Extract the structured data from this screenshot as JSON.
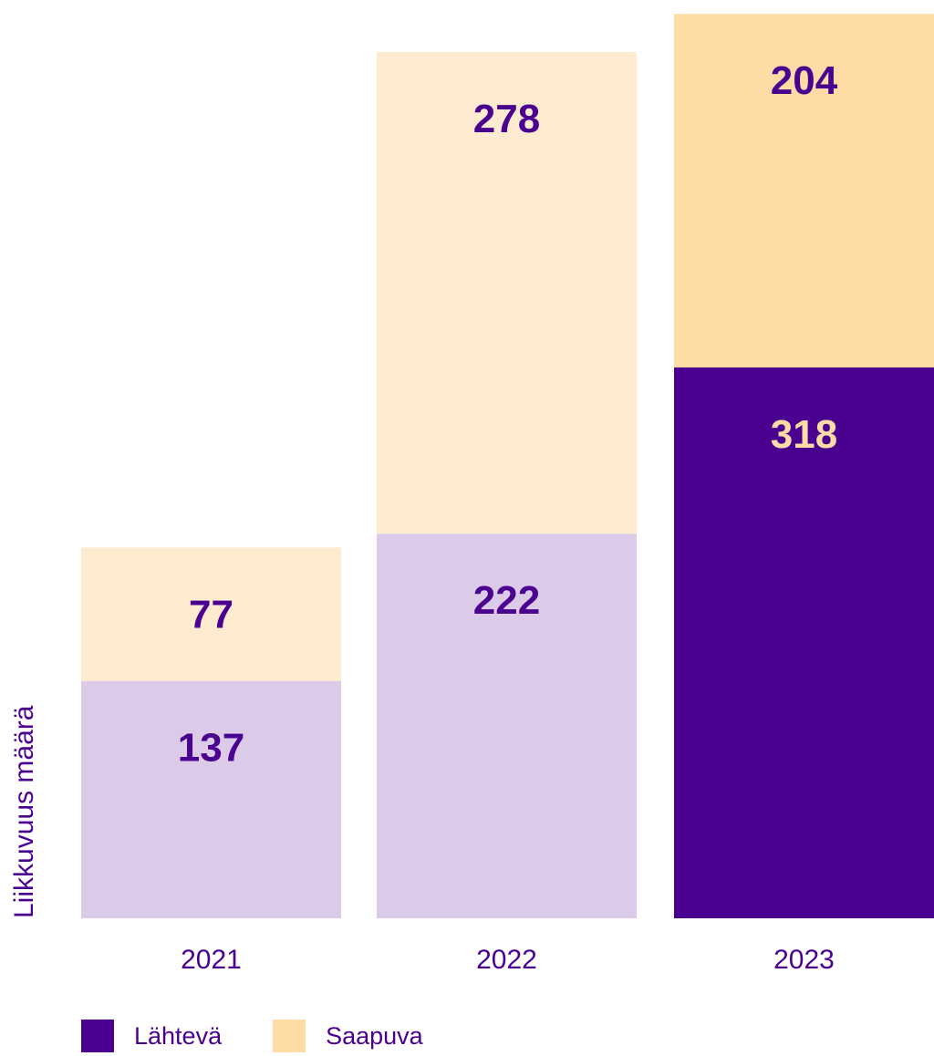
{
  "chart_data": {
    "type": "bar",
    "stacked": true,
    "categories": [
      "2021",
      "2022",
      "2023"
    ],
    "series": [
      {
        "name": "Lähtevä",
        "values": [
          137,
          222,
          318
        ]
      },
      {
        "name": "Saapuva",
        "values": [
          77,
          278,
          204
        ]
      }
    ],
    "ylabel": "Liikkuvuus määrä",
    "ylim": [
      0,
      530
    ],
    "grid": false,
    "legend_position": "bottom-left",
    "highlight_category": "2023",
    "colors": {
      "outgoing_muted": "#dbcbe8",
      "incoming_muted": "#ffecd0",
      "outgoing_highlight": "#4b0190",
      "incoming_highlight": "#ffdca6",
      "text_primary": "#4b0190",
      "text_on_dark": "#ffdca6"
    }
  },
  "legend": {
    "items": [
      {
        "label": "Lähtevä",
        "color": "#4b0190"
      },
      {
        "label": "Saapuva",
        "color": "#ffdca6"
      }
    ]
  }
}
